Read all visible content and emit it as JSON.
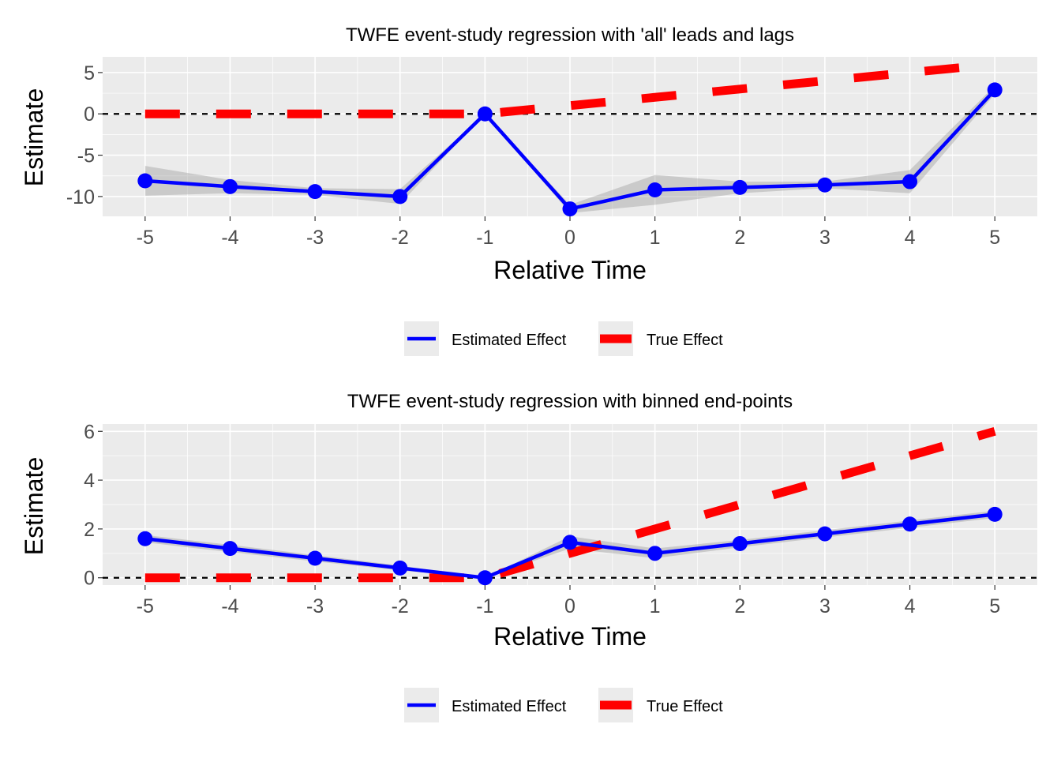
{
  "chart_data": [
    {
      "type": "line",
      "title": "TWFE event-study regression with 'all' leads and lags",
      "xlabel": "Relative Time",
      "ylabel": "Estimate",
      "x": [
        -5,
        -4,
        -3,
        -2,
        -1,
        0,
        1,
        2,
        3,
        4,
        5
      ],
      "xticks": [
        -5,
        -4,
        -3,
        -2,
        -1,
        0,
        1,
        2,
        3,
        4,
        5
      ],
      "yticks": [
        -10,
        -5,
        0,
        5
      ],
      "xlim": [
        -5.5,
        5.5
      ],
      "ylim": [
        -12.4,
        6.9
      ],
      "grid": true,
      "reference_line_y": 0,
      "legend_position": "bottom",
      "series": [
        {
          "name": "Estimated Effect",
          "color": "#0000FF",
          "style": "solid-with-points",
          "values": [
            -8.1,
            -8.8,
            -9.4,
            -10.0,
            0.0,
            -11.5,
            -9.2,
            -8.9,
            -8.6,
            -8.2,
            2.9
          ],
          "ci_lower": [
            -9.9,
            -9.6,
            -9.8,
            -10.9,
            0.0,
            -12.0,
            -11.0,
            -9.6,
            -9.0,
            -9.6,
            2.4
          ],
          "ci_upper": [
            -6.3,
            -8.0,
            -9.0,
            -9.1,
            0.0,
            -11.0,
            -7.4,
            -8.2,
            -8.2,
            -6.8,
            3.4
          ]
        },
        {
          "name": "True Effect",
          "color": "#FF0000",
          "style": "dashed",
          "values": [
            0,
            0,
            0,
            0,
            0,
            1,
            2,
            3,
            4,
            5,
            6
          ]
        }
      ]
    },
    {
      "type": "line",
      "title": "TWFE event-study regression with binned end-points",
      "xlabel": "Relative Time",
      "ylabel": "Estimate",
      "x": [
        -5,
        -4,
        -3,
        -2,
        -1,
        0,
        1,
        2,
        3,
        4,
        5
      ],
      "xticks": [
        -5,
        -4,
        -3,
        -2,
        -1,
        0,
        1,
        2,
        3,
        4,
        5
      ],
      "yticks": [
        0,
        2,
        4,
        6
      ],
      "xlim": [
        -5.5,
        5.5
      ],
      "ylim": [
        -0.3,
        6.3
      ],
      "grid": true,
      "reference_line_y": 0,
      "legend_position": "bottom",
      "series": [
        {
          "name": "Estimated Effect",
          "color": "#0000FF",
          "style": "solid-with-points",
          "values": [
            1.6,
            1.2,
            0.8,
            0.4,
            0.0,
            1.45,
            1.0,
            1.4,
            1.8,
            2.2,
            2.6
          ],
          "ci_lower": [
            1.45,
            1.05,
            0.67,
            0.3,
            0.0,
            1.2,
            0.8,
            1.25,
            1.65,
            2.05,
            2.45
          ],
          "ci_upper": [
            1.75,
            1.35,
            0.93,
            0.5,
            0.0,
            1.7,
            1.2,
            1.55,
            1.95,
            2.35,
            2.75
          ]
        },
        {
          "name": "True Effect",
          "color": "#FF0000",
          "style": "dashed",
          "values": [
            0,
            0,
            0,
            0,
            0,
            1,
            2,
            3,
            4,
            5,
            6
          ]
        }
      ]
    }
  ]
}
